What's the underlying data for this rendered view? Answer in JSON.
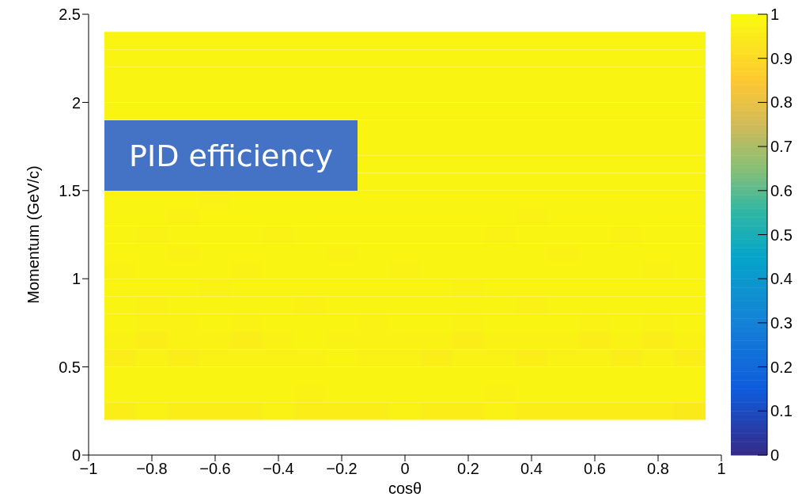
{
  "chart_data": {
    "type": "heatmap",
    "xlabel": "cosθ",
    "ylabel": "Momentum (GeV/c)",
    "annotations": [
      "PID efficiency"
    ],
    "x": [
      -0.9,
      -0.8,
      -0.7,
      -0.6,
      -0.5,
      -0.4,
      -0.3,
      -0.2,
      -0.1,
      0,
      0.1,
      0.2,
      0.3,
      0.4,
      0.5,
      0.6,
      0.7,
      0.8,
      0.9
    ],
    "y": [
      2.35,
      2.25,
      2.15,
      2.05,
      1.95,
      1.85,
      1.75,
      1.65,
      1.55,
      1.45,
      1.35,
      1.25,
      1.15,
      1.05,
      0.95,
      0.85,
      0.75,
      0.65,
      0.55,
      0.45,
      0.35,
      0.25
    ],
    "cells": [
      [
        0.98,
        0.98,
        0.98,
        0.98,
        0.98,
        0.98,
        0.98,
        0.98,
        0.98,
        0.98,
        0.98,
        0.98,
        0.98,
        0.98,
        0.98,
        0.98,
        0.98,
        0.98,
        0.98
      ],
      [
        0.98,
        0.98,
        0.98,
        0.98,
        0.98,
        0.98,
        0.98,
        0.98,
        0.98,
        0.98,
        0.98,
        0.98,
        0.98,
        0.98,
        0.98,
        0.98,
        0.98,
        0.98,
        0.98
      ],
      [
        0.98,
        0.98,
        0.98,
        0.98,
        0.98,
        0.98,
        0.98,
        0.98,
        0.98,
        0.98,
        0.98,
        0.98,
        0.98,
        0.98,
        0.98,
        0.98,
        0.98,
        0.98,
        0.98
      ],
      [
        0.98,
        0.98,
        0.98,
        0.98,
        0.98,
        0.98,
        0.98,
        0.98,
        0.98,
        0.98,
        0.98,
        0.98,
        0.98,
        0.98,
        0.98,
        0.98,
        0.98,
        0.98,
        0.98
      ],
      [
        0.98,
        0.98,
        0.98,
        0.98,
        0.98,
        0.98,
        0.98,
        0.98,
        0.98,
        0.98,
        0.98,
        0.98,
        0.98,
        0.98,
        0.98,
        0.98,
        0.98,
        0.98,
        0.98
      ],
      [
        null,
        null,
        null,
        null,
        null,
        null,
        null,
        null,
        0.98,
        0.98,
        0.98,
        0.98,
        0.98,
        0.98,
        0.98,
        0.98,
        0.98,
        0.98,
        0.98
      ],
      [
        null,
        null,
        null,
        null,
        null,
        null,
        null,
        null,
        0.98,
        0.98,
        0.98,
        0.98,
        0.98,
        0.98,
        0.98,
        0.98,
        0.98,
        0.98,
        0.98
      ],
      [
        null,
        null,
        null,
        null,
        null,
        null,
        null,
        null,
        0.98,
        0.98,
        0.98,
        0.98,
        0.98,
        0.98,
        0.98,
        0.98,
        0.98,
        0.98,
        0.98
      ],
      [
        null,
        null,
        null,
        null,
        null,
        null,
        null,
        null,
        0.98,
        0.98,
        0.98,
        0.98,
        0.98,
        0.98,
        0.98,
        0.98,
        0.98,
        0.98,
        0.98
      ],
      [
        0.98,
        0.98,
        0.98,
        0.97,
        0.98,
        0.98,
        0.98,
        0.98,
        0.98,
        0.98,
        0.98,
        0.98,
        0.98,
        0.98,
        0.98,
        0.98,
        0.98,
        0.98,
        0.98
      ],
      [
        0.98,
        0.98,
        0.97,
        0.98,
        0.98,
        0.98,
        0.98,
        0.98,
        0.98,
        0.98,
        0.98,
        0.98,
        0.98,
        0.97,
        0.98,
        0.98,
        0.98,
        0.98,
        0.98
      ],
      [
        0.98,
        0.97,
        0.98,
        0.98,
        0.98,
        0.97,
        0.98,
        0.98,
        0.98,
        0.98,
        0.98,
        0.98,
        0.97,
        0.98,
        0.98,
        0.98,
        0.97,
        0.98,
        0.98
      ],
      [
        0.98,
        0.98,
        0.97,
        0.98,
        0.98,
        0.98,
        0.98,
        0.97,
        0.98,
        0.98,
        0.98,
        0.98,
        0.98,
        0.98,
        0.97,
        0.98,
        0.98,
        0.98,
        0.98
      ],
      [
        0.97,
        0.98,
        0.98,
        0.98,
        0.97,
        0.98,
        0.98,
        0.98,
        0.98,
        0.97,
        0.98,
        0.98,
        0.98,
        0.98,
        0.98,
        0.98,
        0.98,
        0.97,
        0.98
      ],
      [
        0.98,
        0.98,
        0.98,
        0.97,
        0.98,
        0.98,
        0.98,
        0.98,
        0.98,
        0.98,
        0.98,
        0.97,
        0.98,
        0.98,
        0.98,
        0.98,
        0.98,
        0.98,
        0.98
      ],
      [
        0.98,
        0.97,
        0.98,
        0.98,
        0.98,
        0.98,
        0.97,
        0.98,
        0.98,
        0.98,
        0.98,
        0.98,
        0.98,
        0.97,
        0.98,
        0.98,
        0.98,
        0.98,
        0.98
      ],
      [
        0.98,
        0.97,
        0.97,
        0.98,
        0.97,
        0.98,
        0.98,
        0.98,
        0.97,
        0.98,
        0.98,
        0.97,
        0.98,
        0.98,
        0.98,
        0.97,
        0.98,
        0.97,
        0.98
      ],
      [
        0.97,
        0.96,
        0.97,
        0.97,
        0.96,
        0.97,
        0.98,
        0.97,
        0.97,
        0.97,
        0.97,
        0.96,
        0.97,
        0.97,
        0.97,
        0.96,
        0.97,
        0.96,
        0.97
      ],
      [
        0.96,
        0.97,
        0.96,
        0.97,
        0.97,
        0.97,
        0.97,
        0.98,
        0.97,
        0.97,
        0.96,
        0.97,
        0.97,
        0.96,
        0.97,
        0.97,
        0.96,
        0.97,
        0.96
      ],
      [
        0.98,
        0.98,
        0.98,
        0.98,
        0.98,
        0.98,
        0.98,
        0.98,
        0.98,
        0.98,
        0.98,
        0.98,
        0.98,
        0.98,
        0.98,
        0.98,
        0.98,
        0.98,
        0.98
      ],
      [
        0.98,
        0.98,
        0.98,
        0.98,
        0.98,
        0.98,
        0.97,
        0.98,
        0.98,
        0.98,
        0.98,
        0.98,
        0.97,
        0.98,
        0.98,
        0.98,
        0.98,
        0.98,
        0.98
      ],
      [
        0.96,
        0.97,
        0.96,
        0.96,
        0.96,
        0.97,
        0.96,
        0.96,
        0.96,
        0.97,
        0.96,
        0.96,
        0.97,
        0.96,
        0.96,
        0.96,
        0.96,
        0.96,
        0.95
      ]
    ],
    "xlim": [
      -1,
      1
    ],
    "xticks": [
      {
        "value": -1,
        "label": "−1"
      },
      {
        "value": -0.8,
        "label": "−0.8"
      },
      {
        "value": -0.6,
        "label": "−0.6"
      },
      {
        "value": -0.4,
        "label": "−0.4"
      },
      {
        "value": -0.2,
        "label": "−0.2"
      },
      0,
      0.2,
      0.4,
      0.6,
      0.8,
      1
    ],
    "ylim": [
      0,
      2.5
    ],
    "yticks": [
      0,
      0.5,
      1,
      1.5,
      2,
      2.5
    ],
    "clim": [
      0,
      1
    ],
    "cticks": [
      0,
      0.1,
      0.2,
      0.3,
      0.4,
      0.5,
      0.6,
      0.7,
      0.8,
      0.9,
      1
    ]
  }
}
